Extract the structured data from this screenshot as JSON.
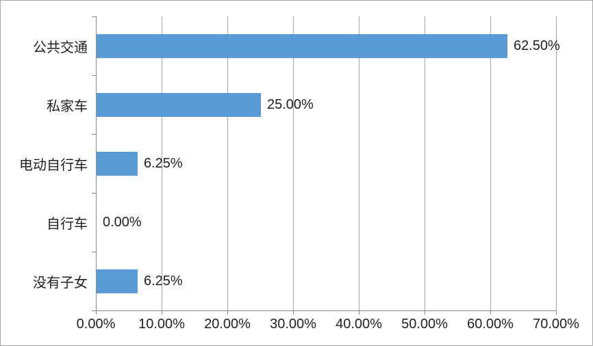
{
  "chart_data": {
    "type": "bar",
    "orientation": "horizontal",
    "title": "",
    "categories": [
      "公共交通",
      "私家车",
      "电动自行车",
      "自行车",
      "没有子女"
    ],
    "values": [
      62.5,
      25.0,
      6.25,
      0.0,
      6.25
    ],
    "value_labels": [
      "62.50%",
      "25.00%",
      "6.25%",
      "0.00%",
      "6.25%"
    ],
    "x_tick_values": [
      0,
      10,
      20,
      30,
      40,
      50,
      60,
      70
    ],
    "x_tick_labels": [
      "0.00%",
      "10.00%",
      "20.00%",
      "30.00%",
      "40.00%",
      "50.00%",
      "60.00%",
      "70.00%"
    ],
    "xlim": [
      0,
      70
    ],
    "grid": true,
    "legend": false,
    "colors": {
      "bar": "#5B9BD5",
      "gridline": "#A6A6A6",
      "axis": "#898989",
      "text": "#1F1F1F",
      "canvas_border": "#A6A6A6",
      "background": "#FFFFFF"
    }
  }
}
